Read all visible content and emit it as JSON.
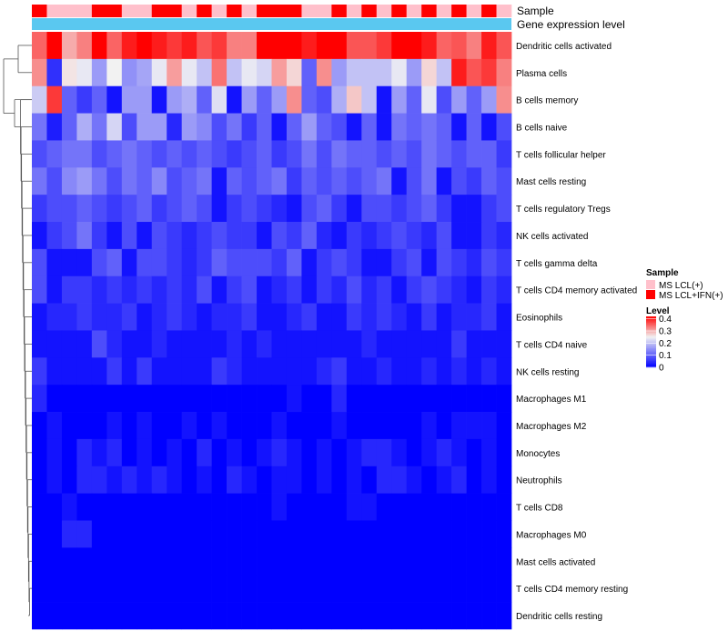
{
  "chart_data": {
    "type": "heatmap",
    "annotation_tracks": [
      {
        "name": "Sample"
      },
      {
        "name": "Gene expression level"
      }
    ],
    "rows": [
      "Dendritic cells activated",
      "Plasma cells",
      "B cells memory",
      "B cells naive",
      "T cells follicular helper",
      "Mast cells resting",
      "T cells regulatory  Tregs",
      "NK cells activated",
      "T cells gamma delta",
      "T cells CD4 memory activated",
      "Eosinophils",
      "T cells CD4 naive",
      "NK cells resting",
      "Macrophages M1",
      "Macrophages M2",
      "Monocytes",
      "Neutrophils",
      "T cells CD8",
      "Macrophages M0",
      "Mast cells activated",
      "T cells CD4 memory resting",
      "Dendritic cells resting"
    ],
    "sample_groups": [
      1,
      0,
      0,
      0,
      1,
      1,
      0,
      0,
      1,
      1,
      0,
      1,
      0,
      1,
      0,
      1,
      1,
      1,
      0,
      0,
      1,
      0,
      1,
      0,
      1,
      0,
      1,
      0,
      1,
      0,
      1,
      0
    ],
    "values": [
      [
        0.35,
        0.42,
        0.3,
        0.33,
        0.42,
        0.35,
        0.4,
        0.42,
        0.4,
        0.38,
        0.4,
        0.36,
        0.38,
        0.33,
        0.33,
        0.42,
        0.42,
        0.42,
        0.4,
        0.42,
        0.42,
        0.36,
        0.36,
        0.38,
        0.42,
        0.42,
        0.4,
        0.35,
        0.36,
        0.33,
        0.4,
        0.36
      ],
      [
        0.32,
        0.05,
        0.26,
        0.24,
        0.16,
        0.25,
        0.15,
        0.17,
        0.24,
        0.31,
        0.24,
        0.2,
        0.34,
        0.2,
        0.24,
        0.22,
        0.31,
        0.27,
        0.1,
        0.32,
        0.16,
        0.2,
        0.2,
        0.2,
        0.24,
        0.16,
        0.27,
        0.2,
        0.4,
        0.36,
        0.38,
        0.33
      ],
      [
        0.21,
        0.38,
        0.1,
        0.06,
        0.1,
        0.02,
        0.16,
        0.16,
        0.02,
        0.16,
        0.18,
        0.1,
        0.23,
        0.02,
        0.16,
        0.1,
        0.16,
        0.32,
        0.1,
        0.08,
        0.18,
        0.28,
        0.2,
        0.02,
        0.16,
        0.1,
        0.24,
        0.08,
        0.16,
        0.1,
        0.16,
        0.32
      ],
      [
        0.12,
        0.03,
        0.1,
        0.18,
        0.12,
        0.22,
        0.08,
        0.16,
        0.16,
        0.04,
        0.16,
        0.14,
        0.08,
        0.12,
        0.06,
        0.1,
        0.02,
        0.1,
        0.16,
        0.1,
        0.08,
        0.02,
        0.1,
        0.02,
        0.12,
        0.1,
        0.12,
        0.1,
        0.02,
        0.1,
        0.02,
        0.08
      ],
      [
        0.08,
        0.1,
        0.12,
        0.12,
        0.08,
        0.1,
        0.12,
        0.1,
        0.08,
        0.1,
        0.08,
        0.1,
        0.08,
        0.06,
        0.08,
        0.1,
        0.06,
        0.08,
        0.12,
        0.08,
        0.12,
        0.1,
        0.1,
        0.08,
        0.1,
        0.08,
        0.12,
        0.1,
        0.08,
        0.1,
        0.1,
        0.06
      ],
      [
        0.12,
        0.08,
        0.14,
        0.16,
        0.12,
        0.08,
        0.12,
        0.1,
        0.14,
        0.08,
        0.1,
        0.12,
        0.02,
        0.1,
        0.08,
        0.1,
        0.12,
        0.06,
        0.1,
        0.08,
        0.1,
        0.08,
        0.1,
        0.12,
        0.02,
        0.08,
        0.12,
        0.02,
        0.08,
        0.06,
        0.1,
        0.08
      ],
      [
        0.06,
        0.08,
        0.08,
        0.1,
        0.08,
        0.06,
        0.08,
        0.1,
        0.06,
        0.08,
        0.1,
        0.08,
        0.02,
        0.06,
        0.08,
        0.06,
        0.04,
        0.02,
        0.08,
        0.1,
        0.06,
        0.02,
        0.08,
        0.08,
        0.06,
        0.08,
        0.1,
        0.06,
        0.02,
        0.02,
        0.06,
        0.08
      ],
      [
        0.02,
        0.06,
        0.08,
        0.12,
        0.06,
        0.02,
        0.08,
        0.02,
        0.08,
        0.06,
        0.04,
        0.06,
        0.08,
        0.06,
        0.06,
        0.02,
        0.08,
        0.06,
        0.1,
        0.04,
        0.02,
        0.06,
        0.04,
        0.06,
        0.08,
        0.06,
        0.04,
        0.08,
        0.02,
        0.02,
        0.06,
        0.04
      ],
      [
        0.08,
        0.02,
        0.02,
        0.02,
        0.08,
        0.1,
        0.02,
        0.08,
        0.08,
        0.06,
        0.04,
        0.06,
        0.1,
        0.08,
        0.08,
        0.08,
        0.06,
        0.1,
        0.02,
        0.06,
        0.08,
        0.06,
        0.02,
        0.02,
        0.06,
        0.08,
        0.02,
        0.08,
        0.06,
        0.04,
        0.08,
        0.06
      ],
      [
        0.08,
        0.02,
        0.06,
        0.06,
        0.04,
        0.06,
        0.04,
        0.06,
        0.04,
        0.06,
        0.04,
        0.08,
        0.02,
        0.06,
        0.08,
        0.02,
        0.04,
        0.06,
        0.02,
        0.06,
        0.04,
        0.08,
        0.04,
        0.06,
        0.02,
        0.06,
        0.08,
        0.06,
        0.04,
        0.02,
        0.06,
        0.04
      ],
      [
        0.02,
        0.04,
        0.04,
        0.06,
        0.04,
        0.04,
        0.06,
        0.02,
        0.04,
        0.06,
        0.04,
        0.02,
        0.04,
        0.04,
        0.06,
        0.02,
        0.02,
        0.04,
        0.06,
        0.02,
        0.02,
        0.06,
        0.04,
        0.06,
        0.04,
        0.02,
        0.06,
        0.02,
        0.04,
        0.04,
        0.06,
        0.02
      ],
      [
        0.02,
        0.02,
        0.02,
        0.02,
        0.08,
        0.04,
        0.02,
        0.02,
        0.04,
        0.02,
        0.02,
        0.02,
        0.02,
        0.04,
        0.02,
        0.04,
        0.02,
        0.02,
        0.02,
        0.02,
        0.02,
        0.02,
        0.04,
        0.02,
        0.02,
        0.02,
        0.02,
        0.02,
        0.06,
        0.02,
        0.02,
        0.02
      ],
      [
        0.06,
        0.02,
        0.02,
        0.02,
        0.02,
        0.06,
        0.02,
        0.06,
        0.02,
        0.02,
        0.02,
        0.02,
        0.06,
        0.04,
        0.02,
        0.02,
        0.02,
        0.02,
        0.02,
        0.04,
        0.06,
        0.02,
        0.02,
        0.04,
        0.02,
        0.02,
        0.04,
        0.02,
        0.04,
        0.02,
        0.04,
        0.02
      ],
      [
        0.04,
        0.0,
        0.0,
        0.0,
        0.0,
        0.0,
        0.0,
        0.0,
        0.0,
        0.0,
        0.0,
        0.0,
        0.0,
        0.0,
        0.0,
        0.0,
        0.0,
        0.02,
        0.0,
        0.0,
        0.04,
        0.0,
        0.0,
        0.0,
        0.0,
        0.0,
        0.0,
        0.0,
        0.0,
        0.0,
        0.0,
        0.0
      ],
      [
        0.0,
        0.02,
        0.0,
        0.0,
        0.0,
        0.02,
        0.0,
        0.02,
        0.0,
        0.0,
        0.02,
        0.0,
        0.02,
        0.0,
        0.0,
        0.0,
        0.02,
        0.0,
        0.0,
        0.0,
        0.02,
        0.0,
        0.0,
        0.0,
        0.0,
        0.0,
        0.02,
        0.0,
        0.02,
        0.02,
        0.02,
        0.0
      ],
      [
        0.0,
        0.02,
        0.0,
        0.04,
        0.02,
        0.04,
        0.0,
        0.02,
        0.0,
        0.02,
        0.0,
        0.04,
        0.0,
        0.02,
        0.0,
        0.02,
        0.04,
        0.02,
        0.0,
        0.02,
        0.0,
        0.02,
        0.04,
        0.04,
        0.02,
        0.0,
        0.02,
        0.04,
        0.02,
        0.0,
        0.02,
        0.0
      ],
      [
        0.0,
        0.02,
        0.0,
        0.04,
        0.04,
        0.02,
        0.04,
        0.02,
        0.04,
        0.02,
        0.0,
        0.02,
        0.0,
        0.04,
        0.02,
        0.0,
        0.02,
        0.02,
        0.0,
        0.02,
        0.0,
        0.02,
        0.0,
        0.04,
        0.04,
        0.02,
        0.0,
        0.02,
        0.04,
        0.0,
        0.02,
        0.0
      ],
      [
        0.0,
        0.0,
        0.02,
        0.0,
        0.0,
        0.0,
        0.0,
        0.0,
        0.0,
        0.0,
        0.0,
        0.0,
        0.0,
        0.0,
        0.0,
        0.0,
        0.02,
        0.0,
        0.0,
        0.0,
        0.0,
        0.02,
        0.02,
        0.0,
        0.0,
        0.0,
        0.0,
        0.0,
        0.0,
        0.0,
        0.0,
        0.0
      ],
      [
        0.0,
        0.0,
        0.04,
        0.04,
        0.0,
        0.0,
        0.0,
        0.0,
        0.0,
        0.0,
        0.0,
        0.0,
        0.0,
        0.0,
        0.0,
        0.0,
        0.0,
        0.0,
        0.0,
        0.0,
        0.0,
        0.0,
        0.0,
        0.0,
        0.0,
        0.0,
        0.0,
        0.0,
        0.0,
        0.0,
        0.0,
        0.0
      ],
      [
        0,
        0,
        0,
        0,
        0,
        0,
        0,
        0,
        0,
        0,
        0,
        0,
        0,
        0,
        0,
        0,
        0,
        0,
        0,
        0,
        0,
        0,
        0,
        0,
        0,
        0,
        0,
        0,
        0,
        0,
        0,
        0
      ],
      [
        0,
        0,
        0,
        0,
        0,
        0,
        0,
        0,
        0,
        0,
        0,
        0,
        0,
        0,
        0,
        0,
        0,
        0,
        0,
        0,
        0,
        0,
        0,
        0,
        0,
        0,
        0,
        0,
        0,
        0,
        0,
        0
      ],
      [
        0,
        0,
        0,
        0,
        0,
        0,
        0,
        0,
        0,
        0,
        0,
        0,
        0,
        0,
        0,
        0,
        0,
        0,
        0,
        0,
        0,
        0,
        0,
        0,
        0,
        0,
        0,
        0,
        0,
        0,
        0,
        0
      ]
    ],
    "color_scale": {
      "low": "#0000ff",
      "mid": "#f2f2f2",
      "high": "#ff0000",
      "min": 0,
      "mid_value": 0.25,
      "max": 0.42
    },
    "legend": {
      "sample": {
        "title": "Sample",
        "items": [
          {
            "label": "MS LCL(+)",
            "color": "#ffc0cb"
          },
          {
            "label": "MS LCL+IFN(+)",
            "color": "#ff0000"
          }
        ]
      },
      "level": {
        "title": "Level",
        "ticks": [
          {
            "label": "0.4",
            "value": 0.4
          },
          {
            "label": "0.3",
            "value": 0.3
          },
          {
            "label": "0.2",
            "value": 0.2
          },
          {
            "label": "0.1",
            "value": 0.1
          },
          {
            "label": "0",
            "value": 0.0
          }
        ]
      }
    },
    "expression_track_color": "#5ac8f0"
  }
}
